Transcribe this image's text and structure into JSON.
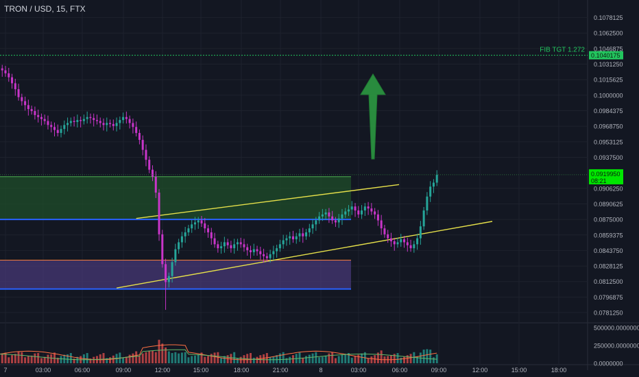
{
  "header": {
    "symbol": "TRON / USD, 15, FTX"
  },
  "colors": {
    "background": "#131722",
    "bullish": "#26a69a",
    "bearish": "#c935c9",
    "trendline": "#e6e04a",
    "target_line": "#22c55e",
    "current_price_badge": "#00e600",
    "upper_zone_fill": "#1f4d2a",
    "lower_zone_fill": "#4a3a7a",
    "zone_blue_line": "#2962ff",
    "zone_orange_line": "#f57c3a",
    "arrow": "#2ea043"
  },
  "icons": {
    "target_arrow": "up-arrow-icon"
  },
  "chart_data": [
    {
      "type": "candlestick",
      "title": "TRON / USD, 15, FTX",
      "ylim": [
        0.0773,
        0.1093
      ],
      "y_ticks": [
        "0.1078125",
        "0.1062500",
        "0.1046875",
        "0.1031250",
        "0.1015625",
        "0.1000000",
        "0.0984375",
        "0.0968750",
        "0.0953125",
        "0.0937500",
        "0.0906250",
        "0.0890625",
        "0.0875000",
        "0.0859375",
        "0.0843750",
        "0.0828125",
        "0.0812500",
        "0.0796875",
        "0.0781250"
      ],
      "x_ticks": [
        "7",
        "03:00",
        "06:00",
        "09:00",
        "12:00",
        "15:00",
        "18:00",
        "21:00",
        "8",
        "03:00",
        "06:00",
        "09:00",
        "12:00",
        "15:00",
        "18:00"
      ],
      "target": {
        "label": "FIB TGT 1.272",
        "price": "0.1040175",
        "value": 0.1040175
      },
      "last_price": {
        "value": 0.091995,
        "label": "0.0919950",
        "countdown": "08:21"
      },
      "zones": [
        {
          "name": "upper",
          "top": 0.0918,
          "bottom": 0.0875,
          "line": 0.0875
        },
        {
          "name": "lower",
          "top": 0.0834,
          "bottom": 0.0805,
          "line": 0.0834
        }
      ],
      "trendlines": [
        {
          "from": [
            "09:00",
            0.0876
          ],
          "to": [
            "03:00",
            0.091
          ]
        },
        {
          "from": [
            "08:00",
            0.0806
          ],
          "to": [
            "06:00",
            0.0873
          ]
        }
      ],
      "candles_summary": {
        "start_time": "23:00",
        "interval_minutes": 15,
        "closes": [
          0.1031,
          0.103,
          0.1027,
          0.1025,
          0.1022,
          0.1018,
          0.1012,
          0.1006,
          0.0998,
          0.0994,
          0.099,
          0.0986,
          0.0984,
          0.098,
          0.0978,
          0.0976,
          0.0974,
          0.097,
          0.0968,
          0.0965,
          0.0962,
          0.0966,
          0.097,
          0.0972,
          0.0974,
          0.0973,
          0.0975,
          0.0974,
          0.0976,
          0.0978,
          0.0977,
          0.0975,
          0.0974,
          0.0972,
          0.097,
          0.0972,
          0.0971,
          0.0969,
          0.0972,
          0.0975,
          0.0978,
          0.0976,
          0.0972,
          0.0968,
          0.0962,
          0.0955,
          0.0945,
          0.0935,
          0.0925,
          0.0918,
          0.0902,
          0.086,
          0.083,
          0.0812,
          0.0818,
          0.0832,
          0.0845,
          0.0852,
          0.0858,
          0.0862,
          0.0866,
          0.087,
          0.0872,
          0.0874,
          0.0871,
          0.0866,
          0.0862,
          0.0856,
          0.085,
          0.0846,
          0.0848,
          0.0852,
          0.0849,
          0.0846,
          0.085,
          0.0852,
          0.085,
          0.0847,
          0.0844,
          0.0842,
          0.0845,
          0.0843,
          0.084,
          0.0838,
          0.0836,
          0.084,
          0.0843,
          0.0846,
          0.085,
          0.0854,
          0.0856,
          0.0858,
          0.0855,
          0.0858,
          0.0861,
          0.0858,
          0.0862,
          0.0866,
          0.087,
          0.0874,
          0.0878,
          0.088,
          0.0882,
          0.0878,
          0.0874,
          0.0872,
          0.0876,
          0.088,
          0.0883,
          0.0885,
          0.0888,
          0.0884,
          0.088,
          0.0884,
          0.0888,
          0.0886,
          0.0883,
          0.088,
          0.0874,
          0.0866,
          0.086,
          0.0856,
          0.0853,
          0.085,
          0.0852,
          0.0855,
          0.0852,
          0.0849,
          0.0846,
          0.085,
          0.0856,
          0.0868,
          0.0884,
          0.0898,
          0.0908,
          0.0912,
          0.092
        ]
      }
    },
    {
      "type": "bar",
      "title": "Volume",
      "y_ticks": [
        "500000.0000000",
        "250000.0000000",
        "0.0000000"
      ],
      "ylim": [
        0,
        500000
      ]
    }
  ]
}
